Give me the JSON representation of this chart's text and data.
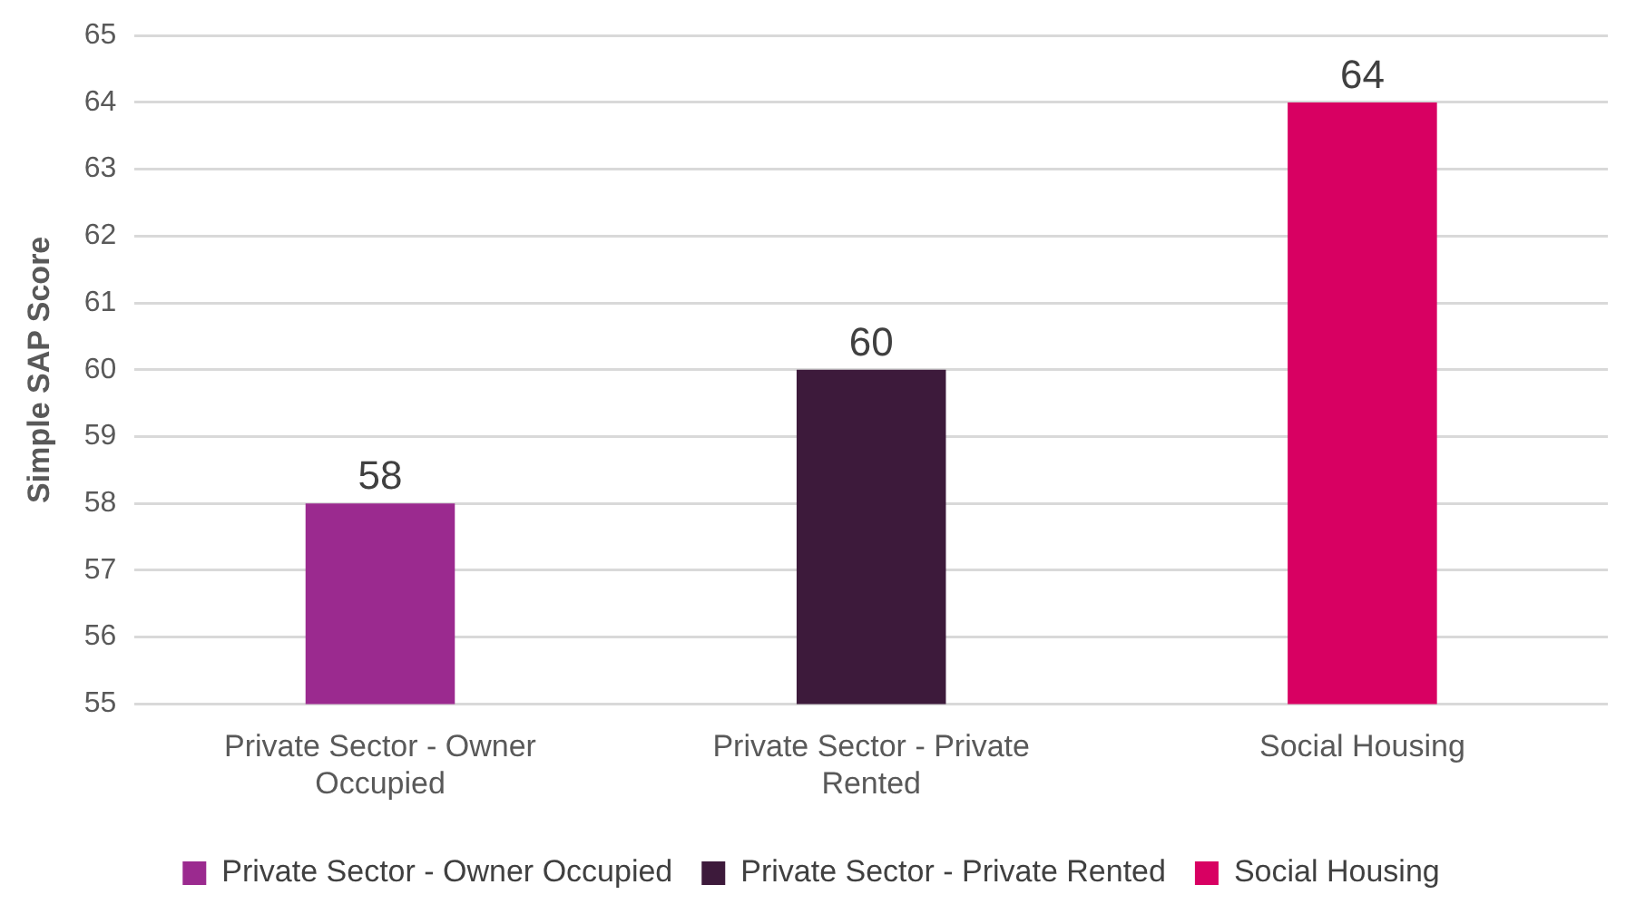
{
  "chart_data": {
    "type": "bar",
    "ylabel": "Simple SAP Score",
    "categories": [
      "Private Sector - Owner Occupied",
      "Private Sector - Private Rented",
      "Social Housing"
    ],
    "series": [
      {
        "name": "Private Sector - Owner Occupied",
        "color": "#9b2a8f",
        "values": [
          58,
          null,
          null
        ]
      },
      {
        "name": "Private Sector - Private Rented",
        "color": "#3d1a3b",
        "values": [
          null,
          60,
          null
        ]
      },
      {
        "name": "Social Housing",
        "color": "#d80062",
        "values": [
          null,
          null,
          64
        ]
      }
    ],
    "ylim": [
      55,
      65
    ],
    "yticks": [
      55,
      56,
      57,
      58,
      59,
      60,
      61,
      62,
      63,
      64,
      65
    ],
    "grid": "y",
    "legend": "bottom",
    "data_labels": true
  }
}
